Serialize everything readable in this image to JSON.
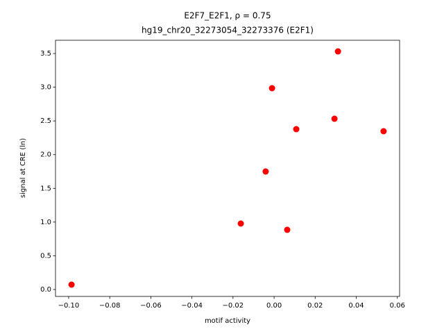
{
  "chart_data": {
    "type": "scatter",
    "title": "E2F7_E2F1, ρ = 0.75",
    "subtitle": "hg19_chr20_32273054_32273376 (E2F1)",
    "xlabel": "motif activity",
    "ylabel": "signal at CRE (ln)",
    "color": "#ff0000",
    "x": [
      -0.0986,
      -0.0162,
      -0.0041,
      -0.001,
      0.0064,
      0.0108,
      0.0294,
      0.0311,
      0.0533
    ],
    "values": [
      0.072,
      0.978,
      1.75,
      2.985,
      0.885,
      2.378,
      2.532,
      3.531,
      2.347
    ],
    "xlim": [
      -0.1064,
      0.0611
    ],
    "ylim": [
      -0.103,
      3.696
    ],
    "xticks": [
      {
        "value": -0.1,
        "label": "−0.10"
      },
      {
        "value": -0.08,
        "label": "−0.08"
      },
      {
        "value": -0.06,
        "label": "−0.06"
      },
      {
        "value": -0.04,
        "label": "−0.04"
      },
      {
        "value": -0.02,
        "label": "−0.02"
      },
      {
        "value": 0,
        "label": "0.00"
      },
      {
        "value": 0.02,
        "label": "0.02"
      },
      {
        "value": 0.04,
        "label": "0.04"
      },
      {
        "value": 0.06,
        "label": "0.06"
      }
    ],
    "yticks": [
      {
        "value": 0,
        "label": "0.0"
      },
      0.5,
      {
        "value": 1,
        "label": "1.0"
      },
      1.5,
      {
        "value": 2,
        "label": "2.0"
      },
      2.5,
      {
        "value": 3,
        "label": "3.0"
      },
      3.5
    ]
  }
}
